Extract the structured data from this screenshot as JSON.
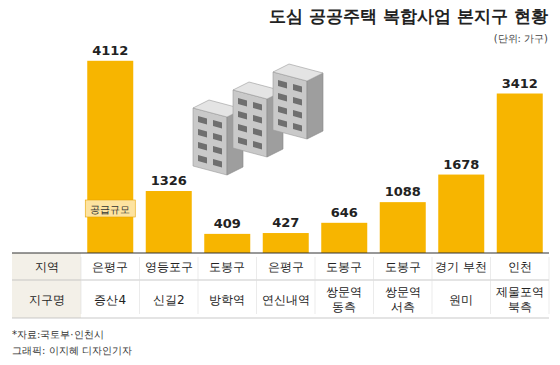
{
  "chart_data": {
    "type": "bar",
    "title": "도심 공공주택 복합사업 본지구 현황",
    "subtitle": "(단위: 가구)",
    "categories": [
      "증산4",
      "신길2",
      "방학역",
      "연신내역",
      "쌍문역 동측",
      "쌍문역 서측",
      "원미",
      "제물포역 북측"
    ],
    "category_label": "지구명",
    "regions": [
      "은평구",
      "영등포구",
      "도봉구",
      "은평구",
      "도봉구",
      "도봉구",
      "경기 부천",
      "인천"
    ],
    "region_label": "지역",
    "values": [
      4112,
      1326,
      409,
      427,
      646,
      1088,
      1678,
      3412
    ],
    "color": "#f7b500",
    "ylim": [
      0,
      4300
    ],
    "data_labels": true,
    "tick_labels": "x",
    "grid": false,
    "annotations": [
      "공급규모"
    ],
    "source": "*자료:국토부·인천시",
    "credit": "그래픽: 이지혜 디자인기자"
  }
}
